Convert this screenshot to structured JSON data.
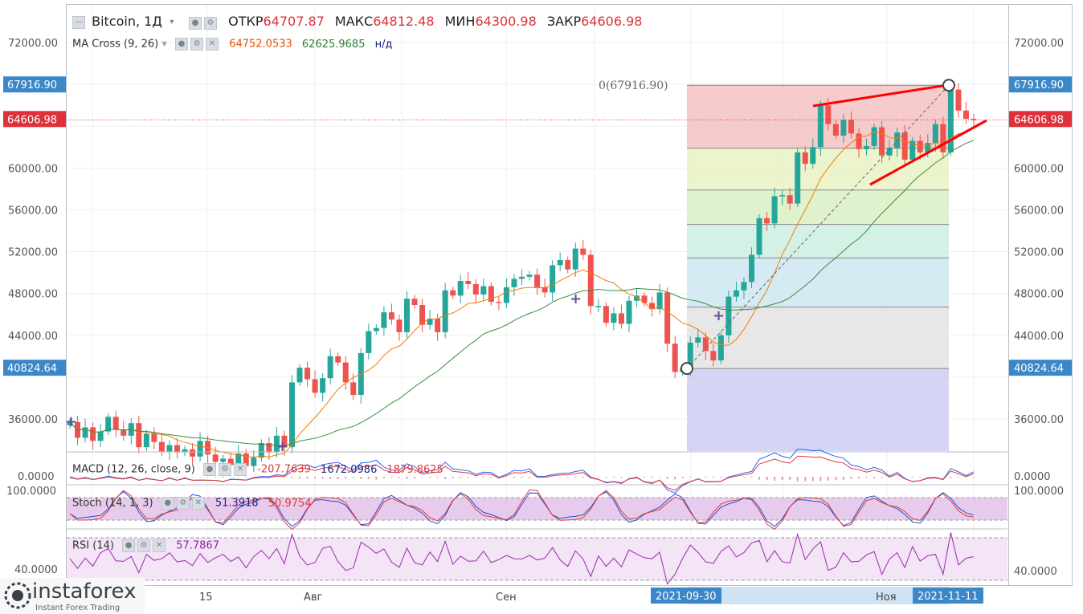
{
  "header": {
    "symbol": "Bitcoin, 1Д",
    "open_label": "ОТКР",
    "open": "64707.87",
    "high_label": "МАКС",
    "high": "64812.48",
    "low_label": "МИН",
    "low": "64300.98",
    "close_label": "ЗАКР",
    "close": "64606.98"
  },
  "ma": {
    "label": "MA Cross (9, 26)",
    "fast": "64752.0533",
    "slow": "62625.9685",
    "na": "н/д"
  },
  "macd": {
    "label": "MACD (12, 26, close, 9)",
    "v1": "-207.7639",
    "v2": "1672.0986",
    "v3": "1879.8625",
    "axis": "0.0000"
  },
  "stoch": {
    "label": "Stoch (14, 1, 3)",
    "k": "51.3918",
    "d": "50.9754",
    "axis": "100.0000"
  },
  "rsi": {
    "label": "RSI (14)",
    "value": "57.7867",
    "axis": "40.0000"
  },
  "price_axis": [
    "72000.00",
    "67916.90",
    "64606.98",
    "60000.00",
    "56000.00",
    "52000.00",
    "48000.00",
    "44000.00",
    "40824.64",
    "36000.00"
  ],
  "fib": {
    "top_label": "0(67916.90)"
  },
  "xaxis": {
    "l1": "15",
    "l2": "Авг",
    "l3": "Сен",
    "tag1": "2021-09-30",
    "l4": "Ноя",
    "tag2": "2021-11-11"
  },
  "logo": {
    "name": "instaforex",
    "tagline": "Instant Forex Trading"
  },
  "colors": {
    "up": "#26a69a",
    "down": "#ef5350",
    "macd": "#2962ff",
    "signal": "#e53935",
    "fast_ma": "#f57c00",
    "slow_ma": "#388e3c",
    "trend": "#ff0000"
  },
  "chart_data": {
    "type": "candlestick",
    "title": "Bitcoin, 1Д",
    "ylim": [
      32000,
      74000
    ],
    "yticks": [
      36000,
      40000,
      44000,
      48000,
      52000,
      56000,
      60000,
      64000,
      68000,
      72000
    ],
    "xticks": [
      "15",
      "Авг",
      "Сен",
      "2021-09-30",
      "Ноя",
      "2021-11-11"
    ],
    "series": [
      {
        "name": "Bitcoin",
        "ohlc_path": [
          35700,
          34200,
          35200,
          33900,
          34800,
          36200,
          35000,
          34400,
          35600,
          33300,
          34600,
          33800,
          32900,
          33500,
          32800,
          33100,
          32400,
          33900,
          32600,
          31900,
          32200,
          31600,
          32700,
          31500,
          32300,
          33700,
          32800,
          34400,
          33300,
          39500,
          40900,
          39800,
          38500,
          39900,
          42000,
          41400,
          39500,
          38300,
          42300,
          44400,
          44700,
          46200,
          45500,
          44300,
          47500,
          46900,
          45000,
          45600,
          44300,
          48300,
          47800,
          49200,
          48900,
          47900,
          48700,
          47200,
          47100,
          48600,
          49400,
          49600,
          49800,
          48600,
          48100,
          50700,
          51200,
          50300,
          52300,
          51700,
          46800,
          46800,
          45200,
          46100,
          45100,
          47300,
          47800,
          47100,
          46500,
          48100,
          43200,
          40500,
          40800,
          43300,
          43800,
          42500,
          41600,
          44000,
          47700,
          48300,
          49100,
          51700,
          55200,
          54700,
          57300,
          57400,
          56600,
          61500,
          60400,
          62000,
          66000,
          64200,
          63100,
          64600,
          63300,
          61800,
          62100,
          63900,
          61200,
          61900,
          63400,
          60800,
          62600,
          61500,
          62400,
          64200,
          61500,
          67500,
          65500,
          64700,
          64600
        ]
      }
    ],
    "fib_levels": [
      67916.9,
      61900,
      57900,
      54600,
      51400,
      46700,
      40824.64
    ]
  }
}
